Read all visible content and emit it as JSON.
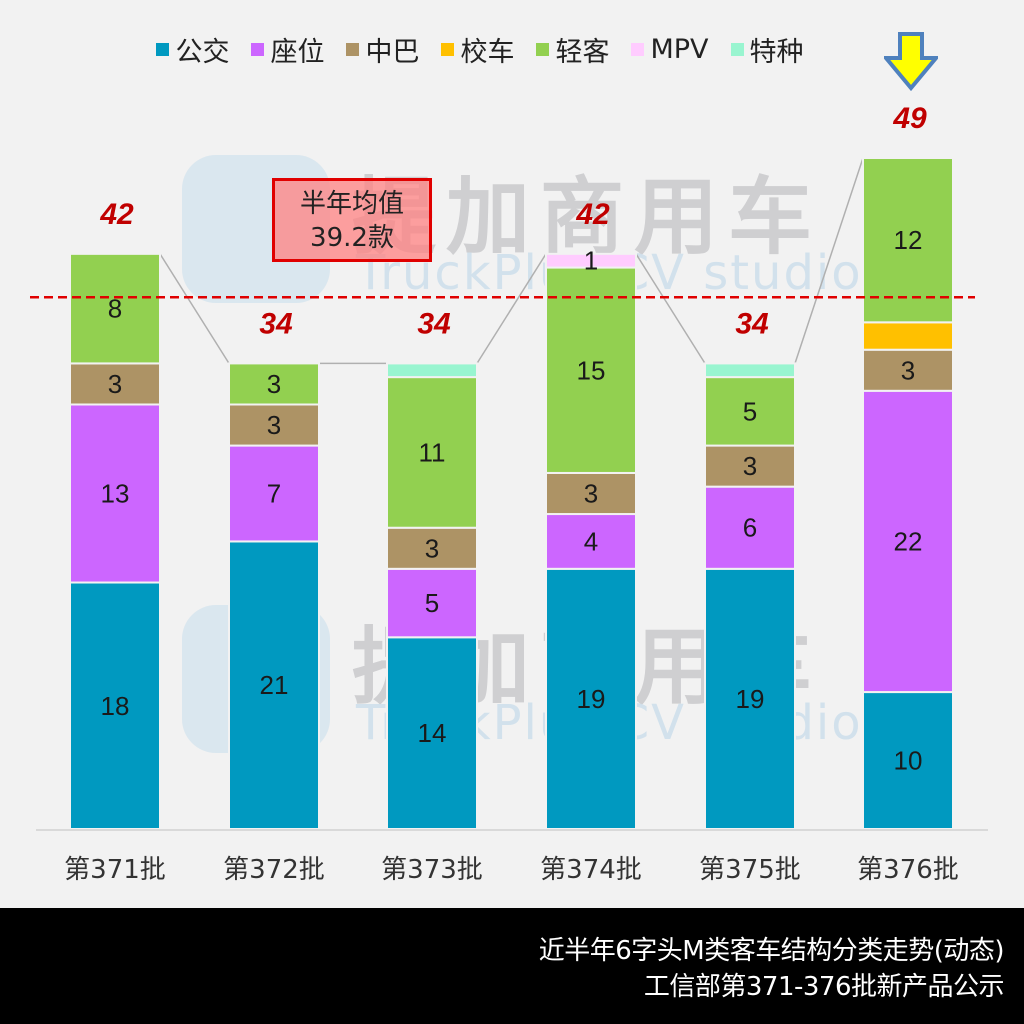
{
  "chart_data": {
    "type": "bar",
    "stacked": true,
    "categories": [
      "第371批",
      "第372批",
      "第373批",
      "第374批",
      "第375批",
      "第376批"
    ],
    "series": [
      {
        "name": "公交",
        "color": "#0099c0",
        "values": [
          18,
          21,
          14,
          19,
          19,
          10
        ]
      },
      {
        "name": "座位",
        "color": "#cc66ff",
        "values": [
          13,
          7,
          5,
          4,
          6,
          22
        ]
      },
      {
        "name": "中巴",
        "color": "#ad9365",
        "values": [
          3,
          3,
          3,
          3,
          3,
          3
        ]
      },
      {
        "name": "校车",
        "color": "#ffc000",
        "values": [
          0,
          0,
          0,
          0,
          0,
          2
        ]
      },
      {
        "name": "轻客",
        "color": "#92d050",
        "values": [
          8,
          3,
          11,
          15,
          5,
          12
        ]
      },
      {
        "name": "MPV",
        "color": "#ffccff",
        "values": [
          0,
          0,
          0,
          1,
          0,
          0
        ]
      },
      {
        "name": "特种",
        "color": "#99f5d0",
        "values": [
          0,
          0,
          1,
          0,
          1,
          0
        ]
      }
    ],
    "segment_labels_hidden_for": [
      "校车",
      "特种"
    ],
    "totals": [
      42,
      34,
      34,
      42,
      34,
      49
    ],
    "average": 39.2,
    "average_line_color": "#e00000",
    "total_label_color": "#c00000",
    "ylim": [
      0,
      49
    ],
    "grid": false,
    "legend_position": "top",
    "title": "",
    "xlabel": "",
    "ylabel": ""
  },
  "avg_box": {
    "line1": "半年均值",
    "line2": "39.2款"
  },
  "watermark": {
    "cn": "提加商用车",
    "en": "TruckPlus CV studio"
  },
  "footer": {
    "line1": "近半年6字头M类客车结构分类走势(动态)",
    "line2": "工信部第371-376批新产品公示"
  },
  "highlight_arrow": {
    "target": "第376批",
    "fill": "#ffff00",
    "stroke": "#4f81bd"
  }
}
